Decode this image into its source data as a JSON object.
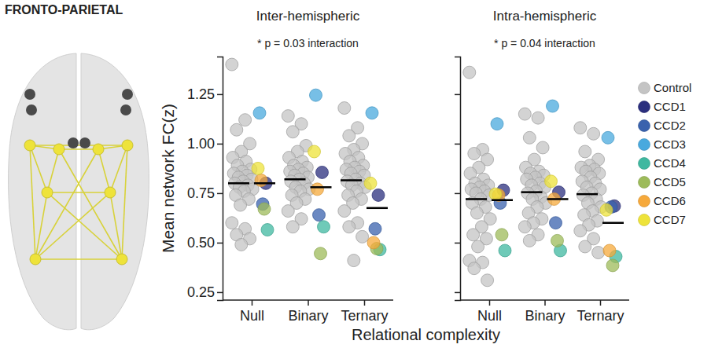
{
  "figure_title": "FRONTO-PARIETAL",
  "x_label": "Relational complexity",
  "chart_data": [
    {
      "type": "scatter",
      "title": "Inter-hemispheric",
      "annotation": "* p = 0.03 interaction",
      "y_label": "Mean network FC(z)",
      "categories": [
        "Null",
        "Binary",
        "Ternary"
      ],
      "ylim": [
        0.21,
        1.44
      ],
      "yticks": [
        {
          "value": 0.25,
          "label": "0.25"
        },
        {
          "value": 0.5,
          "label": "0.50"
        },
        {
          "value": 0.75,
          "label": "0.75"
        },
        {
          "value": 1,
          "label": "1.00"
        },
        {
          "value": 1.25,
          "label": "1.25"
        }
      ],
      "tick_labels": true,
      "legend": "right",
      "marker": "circle",
      "series": [
        {
          "name": "Control",
          "color": "#c4c4c4",
          "values": [
            [
              1.4,
              1.12,
              1.07,
              1.0,
              0.96,
              0.93,
              0.91,
              0.89,
              0.87,
              0.86,
              0.85,
              0.84,
              0.83,
              0.82,
              0.81,
              0.8,
              0.79,
              0.78,
              0.77,
              0.76,
              0.74,
              0.72,
              0.69,
              0.6,
              0.57,
              0.54,
              0.52,
              0.49
            ],
            [
              1.14,
              1.1,
              1.06,
              0.99,
              0.96,
              0.93,
              0.91,
              0.89,
              0.88,
              0.87,
              0.86,
              0.85,
              0.84,
              0.83,
              0.82,
              0.81,
              0.8,
              0.78,
              0.77,
              0.76,
              0.74,
              0.72,
              0.7,
              0.66,
              0.62,
              0.58
            ],
            [
              1.18,
              1.08,
              1.04,
              1.0,
              0.97,
              0.95,
              0.93,
              0.91,
              0.89,
              0.88,
              0.87,
              0.86,
              0.85,
              0.84,
              0.82,
              0.81,
              0.8,
              0.79,
              0.78,
              0.76,
              0.74,
              0.72,
              0.7,
              0.66,
              0.6,
              0.58,
              0.53,
              0.41
            ]
          ]
        },
        {
          "name": "CCD1",
          "color": "#2b2f7e",
          "values": [
            0.8,
            0.855,
            0.74
          ]
        },
        {
          "name": "CCD2",
          "color": "#3a62ad",
          "values": [
            0.695,
            0.64,
            0.57
          ]
        },
        {
          "name": "CCD3",
          "color": "#49a9de",
          "values": [
            1.155,
            1.245,
            1.155
          ]
        },
        {
          "name": "CCD4",
          "color": "#3fb8a0",
          "values": [
            0.565,
            0.58,
            0.465
          ]
        },
        {
          "name": "CCD5",
          "color": "#9dbb5a",
          "values": [
            0.67,
            0.445,
            0.47
          ]
        },
        {
          "name": "CCD6",
          "color": "#f6a93b",
          "values": [
            0.815,
            0.77,
            0.5
          ]
        },
        {
          "name": "CCD7",
          "color": "#eee33a",
          "values": [
            0.875,
            0.96,
            0.8
          ]
        }
      ],
      "means": [
        [
          0.8,
          0.8
        ],
        [
          0.82,
          0.78
        ],
        [
          0.815,
          0.675
        ]
      ]
    },
    {
      "type": "scatter",
      "title": "Intra-hemispheric",
      "annotation": "* p = 0.04 interaction",
      "categories": [
        "Null",
        "Binary",
        "Ternary"
      ],
      "ylim": [
        0.21,
        1.44
      ],
      "yticks": [
        0.25,
        0.5,
        0.75,
        1,
        1.25
      ],
      "tick_labels": "x",
      "marker": "circle",
      "series": [
        {
          "name": "Control",
          "color": "#c4c4c4",
          "values": [
            [
              1.36,
              0.97,
              0.95,
              0.92,
              0.88,
              0.85,
              0.82,
              0.8,
              0.79,
              0.78,
              0.77,
              0.76,
              0.75,
              0.74,
              0.72,
              0.7,
              0.68,
              0.65,
              0.62,
              0.58,
              0.54,
              0.52,
              0.48,
              0.41,
              0.4,
              0.37,
              0.31
            ],
            [
              1.15,
              1.13,
              1.03,
              0.98,
              0.92,
              0.88,
              0.86,
              0.85,
              0.84,
              0.83,
              0.82,
              0.8,
              0.79,
              0.78,
              0.76,
              0.75,
              0.73,
              0.72,
              0.7,
              0.68,
              0.65,
              0.62,
              0.6,
              0.58,
              0.54,
              0.51
            ],
            [
              1.08,
              1.05,
              0.96,
              0.92,
              0.89,
              0.88,
              0.87,
              0.86,
              0.85,
              0.83,
              0.81,
              0.8,
              0.78,
              0.77,
              0.75,
              0.74,
              0.72,
              0.7,
              0.68,
              0.66,
              0.64,
              0.61,
              0.59,
              0.56,
              0.52,
              0.48,
              0.45
            ]
          ]
        },
        {
          "name": "CCD1",
          "color": "#2b2f7e",
          "values": [
            0.765,
            0.755,
            0.685
          ]
        },
        {
          "name": "CCD2",
          "color": "#3a62ad",
          "values": [
            0.7,
            0.6,
            0.68
          ]
        },
        {
          "name": "CCD3",
          "color": "#49a9de",
          "values": [
            1.1,
            1.19,
            1.03
          ]
        },
        {
          "name": "CCD4",
          "color": "#3fb8a0",
          "values": [
            0.46,
            0.46,
            0.43
          ]
        },
        {
          "name": "CCD5",
          "color": "#9dbb5a",
          "values": [
            0.54,
            0.51,
            0.385
          ]
        },
        {
          "name": "CCD6",
          "color": "#f6a93b",
          "values": [
            0.74,
            0.72,
            0.46
          ]
        },
        {
          "name": "CCD7",
          "color": "#eee33a",
          "values": [
            0.745,
            0.81,
            0.665
          ]
        }
      ],
      "means": [
        [
          0.72,
          0.715
        ],
        [
          0.755,
          0.72
        ],
        [
          0.745,
          0.6
        ]
      ]
    }
  ]
}
